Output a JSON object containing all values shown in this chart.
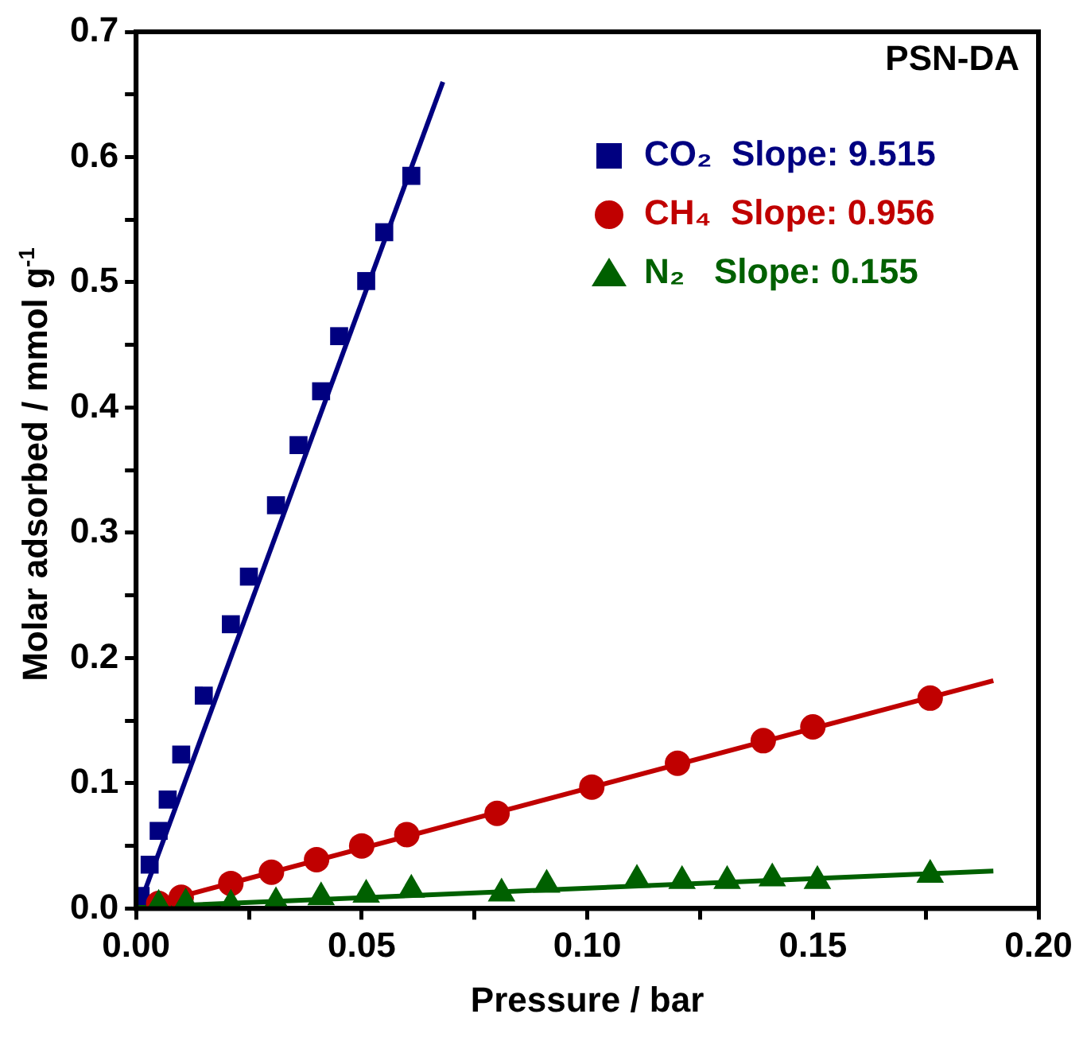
{
  "chart_data": {
    "type": "scatter",
    "xlabel": "Pressure / bar",
    "ylabel": "Molar adsorbed / mmol g$^{-1}$",
    "annotations": [
      "PSN-DA"
    ],
    "legend": "top right",
    "grid": false,
    "xlim": [
      0,
      0.2
    ],
    "ylim": [
      0,
      0.7
    ],
    "xticks": [
      {
        "value": 0,
        "label": "0.00"
      },
      {
        "value": 0.025,
        "label": null
      },
      {
        "value": 0.05,
        "label": "0.05"
      },
      {
        "value": 0.075,
        "label": null
      },
      {
        "value": 0.1,
        "label": "0.10"
      },
      {
        "value": 0.125,
        "label": null
      },
      {
        "value": 0.15,
        "label": "0.15"
      },
      {
        "value": 0.175,
        "label": null
      },
      {
        "value": 0.2,
        "label": "0.20"
      }
    ],
    "yticks": [
      {
        "value": 0,
        "label": "0.0"
      },
      {
        "value": 0.05,
        "label": null
      },
      {
        "value": 0.1,
        "label": "0.1"
      },
      {
        "value": 0.15,
        "label": null
      },
      {
        "value": 0.2,
        "label": "0.2"
      },
      {
        "value": 0.25,
        "label": null
      },
      {
        "value": 0.3,
        "label": "0.3"
      },
      {
        "value": 0.35,
        "label": null
      },
      {
        "value": 0.4,
        "label": "0.4"
      },
      {
        "value": 0.45,
        "label": null
      },
      {
        "value": 0.5,
        "label": "0.5"
      },
      {
        "value": 0.55,
        "label": null
      },
      {
        "value": 0.6,
        "label": "0.6"
      },
      {
        "value": 0.65,
        "label": null
      },
      {
        "value": 0.7,
        "label": "0.7"
      }
    ],
    "series": [
      {
        "name": "CO₂  Slope: 9.515",
        "color": "#000080",
        "marker": "square",
        "x": [
          0.001,
          0.003,
          0.005,
          0.007,
          0.01,
          0.015,
          0.021,
          0.025,
          0.031,
          0.036,
          0.041,
          0.045,
          0.051,
          0.055,
          0.061
        ],
        "values": [
          0.01,
          0.035,
          0.062,
          0.087,
          0.123,
          0.17,
          0.227,
          0.265,
          0.322,
          0.37,
          0.413,
          0.457,
          0.501,
          0.54,
          0.585
        ]
      },
      {
        "name": "CH₄  Slope: 0.956",
        "color": "#c00000",
        "marker": "circle",
        "x": [
          0.005,
          0.01,
          0.021,
          0.03,
          0.04,
          0.05,
          0.06,
          0.08,
          0.101,
          0.12,
          0.139,
          0.15,
          0.176
        ],
        "values": [
          0.004,
          0.009,
          0.02,
          0.029,
          0.039,
          0.05,
          0.059,
          0.076,
          0.097,
          0.116,
          0.134,
          0.145,
          0.168
        ]
      },
      {
        "name": "N₂   Slope: 0.155",
        "color": "#006000",
        "marker": "triangle",
        "x": [
          0.005,
          0.011,
          0.021,
          0.031,
          0.041,
          0.051,
          0.061,
          0.081,
          0.091,
          0.111,
          0.121,
          0.131,
          0.141,
          0.151,
          0.176
        ],
        "values": [
          0.003,
          0.004,
          0.003,
          0.005,
          0.009,
          0.011,
          0.015,
          0.012,
          0.019,
          0.023,
          0.022,
          0.022,
          0.024,
          0.022,
          0.027
        ]
      },
      {
        "type": "line",
        "color": "#000080",
        "marker": "none",
        "x": [
          0.001,
          0.068
        ],
        "values": [
          0.005,
          0.66
        ]
      },
      {
        "type": "line",
        "color": "#c00000",
        "marker": "none",
        "x": [
          0.005,
          0.19
        ],
        "values": [
          0.005,
          0.182
        ]
      },
      {
        "type": "line",
        "color": "#006000",
        "marker": "none",
        "x": [
          0,
          0.19
        ],
        "values": [
          0.001,
          0.03
        ]
      }
    ]
  }
}
